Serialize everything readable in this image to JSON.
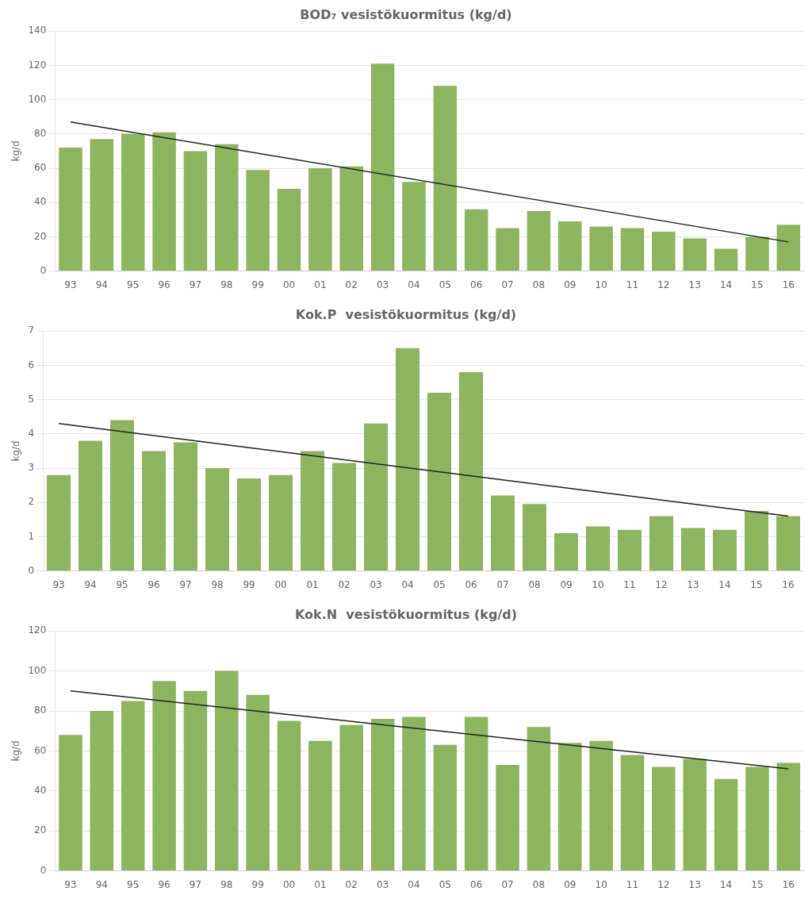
{
  "chart_data": [
    {
      "type": "bar",
      "title": "BOD₇ vesistökuormitus (kg/d)",
      "ylabel": "kg/d",
      "categories": [
        "93",
        "94",
        "95",
        "96",
        "97",
        "98",
        "99",
        "00",
        "01",
        "02",
        "03",
        "04",
        "05",
        "06",
        "07",
        "08",
        "09",
        "10",
        "11",
        "12",
        "13",
        "14",
        "15",
        "16"
      ],
      "series": [
        {
          "type": "bar",
          "color": "#8db560",
          "values": [
            72,
            77,
            80,
            81,
            70,
            74,
            59,
            48,
            60,
            61,
            121,
            52,
            108,
            36,
            25,
            35,
            29,
            26,
            25,
            23,
            19,
            13,
            20,
            27
          ]
        },
        {
          "type": "line",
          "color": "#222222",
          "x": [
            "93",
            "16"
          ],
          "values": [
            87,
            17
          ]
        }
      ],
      "ylim": [
        0,
        140
      ],
      "yticks": [
        0,
        20,
        40,
        60,
        80,
        100,
        120,
        140
      ],
      "grid": true
    },
    {
      "type": "bar",
      "title": "Kok.P  vesistökuormitus (kg/d)",
      "ylabel": "kg/d",
      "categories": [
        "93",
        "94",
        "95",
        "96",
        "97",
        "98",
        "99",
        "00",
        "01",
        "02",
        "03",
        "04",
        "05",
        "06",
        "07",
        "08",
        "09",
        "10",
        "11",
        "12",
        "13",
        "14",
        "15",
        "16"
      ],
      "series": [
        {
          "type": "bar",
          "color": "#8db560",
          "values": [
            2.8,
            3.8,
            4.4,
            3.5,
            3.75,
            3.0,
            2.7,
            2.8,
            3.5,
            3.15,
            4.3,
            6.5,
            5.2,
            5.8,
            2.2,
            1.95,
            1.1,
            1.3,
            1.2,
            1.6,
            1.25,
            1.2,
            1.75,
            1.6
          ]
        },
        {
          "type": "line",
          "color": "#222222",
          "x": [
            "93",
            "16"
          ],
          "values": [
            4.3,
            1.6
          ]
        }
      ],
      "ylim": [
        0,
        7
      ],
      "yticks": [
        0,
        1,
        2,
        3,
        4,
        5,
        6,
        7
      ],
      "grid": true
    },
    {
      "type": "bar",
      "title": "Kok.N  vesistökuormitus (kg/d)",
      "ylabel": "kg/d",
      "categories": [
        "93",
        "94",
        "95",
        "96",
        "97",
        "98",
        "99",
        "00",
        "01",
        "02",
        "03",
        "04",
        "05",
        "06",
        "07",
        "08",
        "09",
        "10",
        "11",
        "12",
        "13",
        "14",
        "15",
        "16"
      ],
      "series": [
        {
          "type": "bar",
          "color": "#8db560",
          "values": [
            68,
            80,
            85,
            95,
            90,
            100,
            88,
            75,
            65,
            73,
            76,
            77,
            63,
            77,
            53,
            72,
            64,
            65,
            58,
            52,
            56,
            46,
            52,
            54
          ]
        },
        {
          "type": "line",
          "color": "#222222",
          "x": [
            "93",
            "16"
          ],
          "values": [
            90,
            51
          ]
        }
      ],
      "ylim": [
        0,
        120
      ],
      "yticks": [
        0,
        20,
        40,
        60,
        80,
        100,
        120
      ],
      "grid": true
    }
  ]
}
